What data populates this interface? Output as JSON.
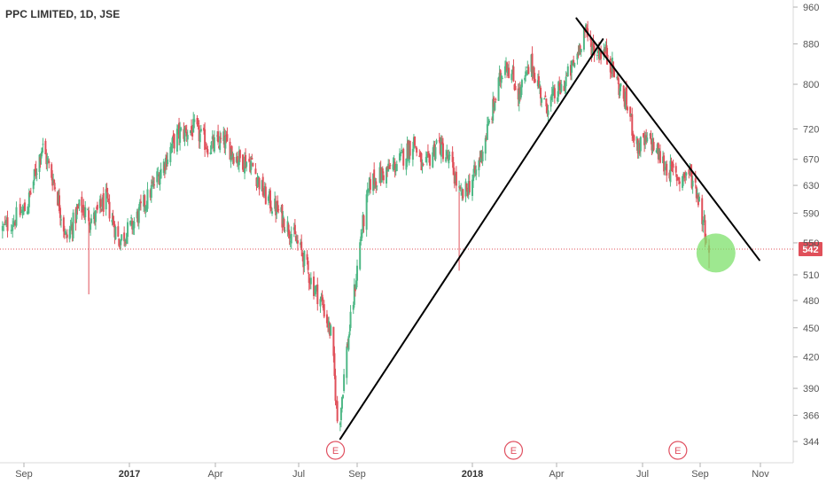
{
  "chart_data": {
    "type": "candlestick",
    "title": "PPC LIMITED, 1D, JSE",
    "y_axis": {
      "scale": "log",
      "position": "right",
      "ticks": [
        344,
        366,
        390,
        420,
        450,
        480,
        510,
        550,
        590,
        630,
        670,
        720,
        800,
        880,
        960
      ],
      "range": [
        330,
        975
      ]
    },
    "x_axis": {
      "ticks": [
        {
          "label": "Sep",
          "date": "2016-09-01",
          "bold": false
        },
        {
          "label": "2017",
          "date": "2017-01-01",
          "bold": true
        },
        {
          "label": "Apr",
          "date": "2017-04-01",
          "bold": false
        },
        {
          "label": "Jul",
          "date": "2017-07-01",
          "bold": false
        },
        {
          "label": "Sep",
          "date": "2017-09-01",
          "bold": false
        },
        {
          "label": "2018",
          "date": "2018-01-01",
          "bold": true
        },
        {
          "label": "Apr",
          "date": "2018-04-01",
          "bold": false
        },
        {
          "label": "Jul",
          "date": "2018-07-01",
          "bold": false
        },
        {
          "label": "Sep",
          "date": "2018-09-01",
          "bold": false
        },
        {
          "label": "Nov",
          "date": "2018-11-01",
          "bold": false
        }
      ],
      "range": [
        "2016-08-13",
        "2018-11-22"
      ]
    },
    "last_price": {
      "value": 542,
      "label": "542",
      "color": "#e0505a"
    },
    "colors": {
      "up": "#4fb886",
      "down": "#e0505a",
      "highlight": "#7ee06b"
    },
    "price_path": [
      [
        "2016-08-15",
        568
      ],
      [
        "2016-09-05",
        600
      ],
      [
        "2016-09-22",
        692
      ],
      [
        "2016-10-08",
        626
      ],
      [
        "2016-10-20",
        555
      ],
      [
        "2016-11-05",
        600
      ],
      [
        "2016-11-20",
        580
      ],
      [
        "2016-12-05",
        610
      ],
      [
        "2016-12-20",
        552
      ],
      [
        "2017-01-05",
        575
      ],
      [
        "2017-01-20",
        612
      ],
      [
        "2017-02-05",
        660
      ],
      [
        "2017-02-20",
        710
      ],
      [
        "2017-03-10",
        720
      ],
      [
        "2017-03-25",
        690
      ],
      [
        "2017-04-10",
        700
      ],
      [
        "2017-04-25",
        672
      ],
      [
        "2017-05-10",
        665
      ],
      [
        "2017-05-25",
        615
      ],
      [
        "2017-06-10",
        590
      ],
      [
        "2017-06-25",
        560
      ],
      [
        "2017-07-05",
        535
      ],
      [
        "2017-07-15",
        500
      ],
      [
        "2017-07-25",
        480
      ],
      [
        "2017-08-05",
        440
      ],
      [
        "2017-08-12",
        350
      ],
      [
        "2017-08-20",
        420
      ],
      [
        "2017-08-28",
        480
      ],
      [
        "2017-09-05",
        560
      ],
      [
        "2017-09-15",
        635
      ],
      [
        "2017-10-01",
        650
      ],
      [
        "2017-10-15",
        665
      ],
      [
        "2017-10-31",
        700
      ],
      [
        "2017-11-10",
        650
      ],
      [
        "2017-11-25",
        700
      ],
      [
        "2017-12-10",
        660
      ],
      [
        "2017-12-20",
        610
      ],
      [
        "2018-01-05",
        650
      ],
      [
        "2018-01-20",
        735
      ],
      [
        "2018-02-05",
        850
      ],
      [
        "2018-02-20",
        780
      ],
      [
        "2018-03-05",
        840
      ],
      [
        "2018-03-20",
        760
      ],
      [
        "2018-04-05",
        790
      ],
      [
        "2018-04-20",
        840
      ],
      [
        "2018-04-30",
        910
      ],
      [
        "2018-05-10",
        870
      ],
      [
        "2018-05-25",
        860
      ],
      [
        "2018-06-05",
        800
      ],
      [
        "2018-06-15",
        760
      ],
      [
        "2018-06-25",
        690
      ],
      [
        "2018-07-10",
        700
      ],
      [
        "2018-07-25",
        660
      ],
      [
        "2018-08-10",
        640
      ],
      [
        "2018-08-20",
        650
      ],
      [
        "2018-08-28",
        625
      ],
      [
        "2018-09-05",
        575
      ],
      [
        "2018-09-10",
        542
      ]
    ],
    "spikes": [
      {
        "date": "2016-11-15",
        "low": 487
      },
      {
        "date": "2017-12-18",
        "low": 515
      },
      {
        "date": "2018-09-10",
        "low": 518
      }
    ],
    "trendlines": [
      {
        "from": [
          "2017-08-14",
          346
        ],
        "to": [
          "2018-05-20",
          890
        ],
        "color": "#000000"
      },
      {
        "from": [
          "2018-04-22",
          935
        ],
        "to": [
          "2018-10-31",
          528
        ],
        "color": "#000000"
      }
    ],
    "earnings_markers": [
      {
        "label": "E",
        "date": "2017-08-09"
      },
      {
        "label": "E",
        "date": "2018-02-14"
      },
      {
        "label": "E",
        "date": "2018-08-08"
      }
    ],
    "highlight": {
      "date": "2018-09-17",
      "value": 537
    }
  }
}
